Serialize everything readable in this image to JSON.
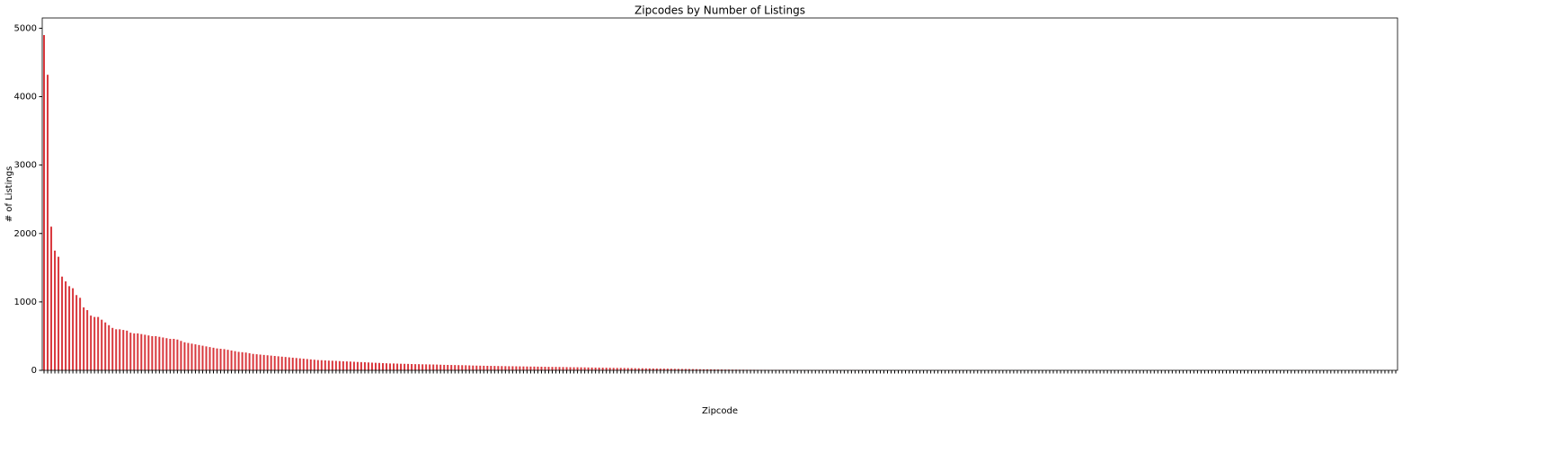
{
  "chart_data": {
    "type": "bar",
    "title": "Zipcodes by Number of Listings",
    "x_label": "Zipcode",
    "y_label": "# of Listings",
    "color": "#d9383d",
    "ylim": [
      0,
      5150
    ],
    "yticks": [
      0,
      1000,
      2000,
      3000,
      4000,
      5000
    ],
    "grid": false,
    "values": [
      4900,
      4320,
      2100,
      1750,
      1660,
      1370,
      1300,
      1230,
      1200,
      1100,
      1060,
      920,
      880,
      800,
      780,
      780,
      740,
      700,
      660,
      620,
      600,
      600,
      590,
      580,
      550,
      540,
      540,
      530,
      520,
      510,
      500,
      500,
      490,
      480,
      470,
      460,
      460,
      450,
      430,
      410,
      400,
      390,
      380,
      370,
      360,
      350,
      340,
      330,
      320,
      315,
      310,
      300,
      290,
      280,
      270,
      265,
      260,
      250,
      240,
      235,
      230,
      225,
      220,
      215,
      210,
      205,
      200,
      195,
      190,
      185,
      180,
      175,
      170,
      165,
      160,
      155,
      150,
      148,
      145,
      142,
      140,
      138,
      135,
      132,
      130,
      128,
      125,
      122,
      120,
      118,
      115,
      112,
      110,
      108,
      105,
      103,
      100,
      100,
      98,
      96,
      95,
      94,
      92,
      90,
      90,
      88,
      87,
      86,
      85,
      84,
      82,
      80,
      79,
      78,
      77,
      76,
      75,
      74,
      72,
      70,
      69,
      68,
      67,
      66,
      65,
      64,
      63,
      62,
      61,
      60,
      60,
      59,
      58,
      57,
      56,
      55,
      55,
      54,
      53,
      52,
      51,
      50,
      50,
      49,
      48,
      47,
      46,
      45,
      45,
      44,
      43,
      42,
      41,
      40,
      40,
      39,
      38,
      37,
      36,
      35,
      35,
      34,
      33,
      32,
      31,
      30,
      30,
      29,
      28,
      27,
      26,
      25,
      25,
      24,
      23,
      22,
      21,
      20,
      20,
      19,
      18,
      17,
      16,
      15,
      15,
      14,
      13,
      12,
      12,
      11,
      11,
      10,
      10,
      9,
      9,
      8,
      8,
      8,
      7,
      7,
      7,
      6,
      6,
      6,
      5,
      5,
      5,
      5,
      4,
      4,
      4,
      4,
      4,
      3,
      3,
      3,
      3,
      3,
      3,
      3,
      3,
      3,
      3,
      3,
      3,
      3,
      2,
      2,
      2,
      2,
      2,
      2,
      2,
      2,
      2,
      2,
      2,
      2,
      2,
      2,
      2,
      2,
      2,
      2,
      2,
      2,
      2,
      2,
      2,
      2,
      2,
      2,
      2,
      2,
      2,
      2,
      2,
      2,
      2,
      2,
      1,
      1,
      1,
      1,
      1,
      1,
      1,
      1,
      1,
      1,
      1,
      1,
      1,
      1,
      1,
      1,
      1,
      1,
      1,
      1,
      1,
      1,
      1,
      1,
      1,
      1,
      1,
      1,
      1,
      1,
      1,
      1,
      1,
      1,
      1,
      1,
      1,
      1,
      1,
      1,
      1,
      1,
      1,
      1,
      1,
      1,
      1,
      1,
      1,
      1,
      1,
      1,
      1,
      1,
      1,
      1,
      1,
      1,
      1,
      1,
      1,
      1,
      1,
      1,
      1,
      1,
      1,
      1,
      1,
      1,
      1,
      1,
      1,
      1,
      1,
      1,
      1,
      1,
      1,
      1,
      1,
      1,
      1,
      1,
      1,
      1,
      1,
      1,
      1,
      1,
      1,
      1,
      1,
      1,
      1,
      1,
      1,
      1,
      1,
      1,
      1,
      1,
      1,
      1,
      1,
      1,
      1,
      1,
      1,
      1,
      1,
      1,
      1,
      1,
      1,
      1
    ],
    "categories": [
      null,
      null,
      null,
      null,
      null,
      null,
      null,
      null,
      null,
      null,
      null,
      null,
      null,
      null,
      null,
      null,
      null,
      null,
      null,
      null,
      null,
      null,
      null,
      null,
      null,
      null,
      null,
      null,
      null,
      null,
      null,
      null,
      null,
      null,
      null,
      null,
      null,
      null,
      null,
      null,
      null,
      null,
      null,
      null,
      null,
      null,
      null,
      null,
      null,
      null,
      null,
      null,
      null,
      null,
      null,
      null,
      null,
      null,
      null,
      null,
      null,
      null,
      null,
      null,
      null,
      null,
      null,
      null,
      null,
      null,
      null,
      null,
      null,
      null,
      null,
      null,
      null,
      null,
      null,
      null,
      null,
      null,
      null,
      null,
      null,
      null,
      null,
      null,
      null,
      null,
      null,
      null,
      null,
      null,
      null,
      null,
      null,
      null,
      null,
      null,
      null,
      null,
      null,
      null,
      null,
      null,
      null,
      null,
      null,
      null,
      null,
      null,
      null,
      null,
      null,
      null,
      null,
      null,
      null,
      null,
      null,
      null,
      null,
      null,
      null,
      null,
      null,
      null,
      null,
      null,
      null,
      null,
      null,
      null,
      null,
      null,
      null,
      null,
      null,
      null,
      null,
      null,
      null,
      null,
      null,
      null,
      null,
      null,
      null,
      null,
      null,
      null,
      null,
      null,
      null,
      null,
      null,
      null,
      null,
      null,
      null,
      null,
      null,
      null,
      null,
      null,
      null,
      null,
      null,
      null,
      null,
      null,
      null,
      null,
      null,
      null,
      null,
      null,
      null,
      null,
      null,
      null,
      null,
      null,
      null,
      null,
      null,
      null,
      null,
      null,
      null,
      null,
      null,
      null,
      null,
      null,
      null,
      null,
      null,
      null,
      null,
      null,
      null,
      null,
      null,
      null,
      null,
      null,
      null,
      null,
      null,
      null,
      null,
      null,
      null,
      null,
      null,
      null,
      null,
      null,
      null,
      null,
      null,
      null,
      null,
      null,
      null,
      null,
      null,
      null,
      null,
      null,
      null,
      null,
      null,
      null,
      null,
      null,
      null,
      null,
      null,
      null,
      null,
      null,
      null,
      null,
      null,
      null,
      null,
      null,
      null,
      null,
      null,
      null,
      null,
      null,
      null,
      null,
      null,
      null,
      null,
      null,
      null,
      null,
      null,
      null,
      null,
      null,
      null,
      null,
      null,
      null,
      null,
      null,
      null,
      null,
      null,
      null,
      null,
      null,
      null,
      null,
      null,
      null,
      null,
      null,
      null,
      null,
      null,
      null,
      null,
      null,
      null,
      null,
      null,
      null,
      null,
      null,
      null,
      null,
      null,
      null,
      null,
      null,
      null,
      null,
      null,
      null,
      null,
      null,
      null,
      null,
      null,
      null,
      null,
      null,
      null,
      null,
      null,
      null,
      null,
      null,
      null,
      null,
      null,
      null,
      null,
      null,
      null,
      null,
      null,
      null,
      null,
      null,
      null,
      null,
      null,
      null,
      null,
      null,
      null,
      null,
      null,
      null,
      null,
      null,
      null,
      null,
      null,
      null,
      null,
      null,
      null,
      null,
      null,
      null,
      null,
      null,
      null,
      null,
      null,
      null,
      null,
      null,
      null,
      null,
      null,
      null,
      null,
      null,
      null,
      null,
      null,
      null,
      null,
      null
    ]
  }
}
